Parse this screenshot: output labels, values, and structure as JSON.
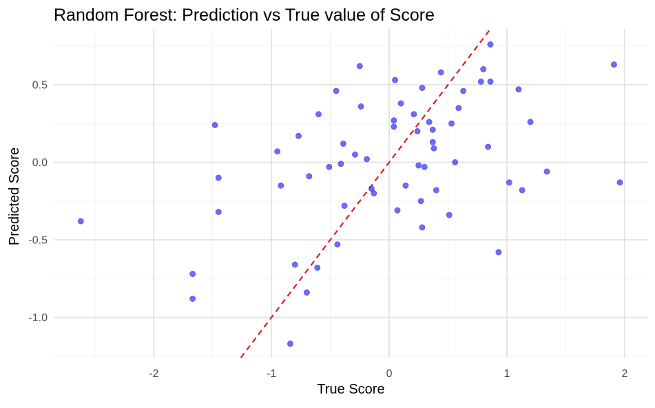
{
  "chart_data": {
    "type": "scatter",
    "title": "Random Forest: Prediction vs True value of Score",
    "xlabel": "True Score",
    "ylabel": "Predicted Score",
    "xlim": [
      -2.85,
      2.2
    ],
    "ylim": [
      -1.26,
      0.86
    ],
    "xticks": [
      -2,
      -1,
      0,
      1,
      2
    ],
    "xtick_labels": [
      "-2",
      "-1",
      "0",
      "1",
      "2"
    ],
    "yticks": [
      -1.0,
      -0.5,
      0.0,
      0.5
    ],
    "ytick_labels": [
      "-1.0",
      "-0.5",
      "0.0",
      "0.5"
    ],
    "grid": true,
    "point_color": "#3b3bf2",
    "reference_line": {
      "slope": 1,
      "intercept": 0,
      "style": "dashed",
      "color": "#e31a1c"
    },
    "x": [
      -2.62,
      -1.67,
      -1.67,
      -1.48,
      -1.45,
      -1.45,
      -0.95,
      -0.92,
      -0.84,
      -0.8,
      -0.77,
      -0.7,
      -0.68,
      -0.61,
      -0.6,
      -0.51,
      -0.45,
      -0.44,
      -0.41,
      -0.39,
      -0.38,
      -0.29,
      -0.25,
      -0.24,
      -0.19,
      -0.15,
      -0.13,
      0.04,
      0.04,
      0.05,
      0.07,
      0.1,
      0.14,
      0.21,
      0.24,
      0.25,
      0.27,
      0.28,
      0.28,
      0.3,
      0.34,
      0.37,
      0.37,
      0.38,
      0.4,
      0.44,
      0.51,
      0.53,
      0.56,
      0.59,
      0.63,
      0.78,
      0.8,
      0.84,
      0.86,
      0.86,
      0.93,
      1.02,
      1.1,
      1.13,
      1.2,
      1.34,
      1.91,
      1.96
    ],
    "y": [
      -0.38,
      -0.72,
      -0.88,
      0.24,
      -0.1,
      -0.32,
      0.07,
      -0.15,
      -1.17,
      -0.66,
      0.17,
      -0.84,
      -0.09,
      -0.68,
      0.31,
      -0.03,
      0.46,
      -0.53,
      -0.01,
      0.12,
      -0.28,
      0.05,
      0.62,
      0.36,
      0.02,
      -0.17,
      -0.2,
      0.23,
      0.27,
      0.53,
      -0.31,
      0.38,
      -0.15,
      0.31,
      0.2,
      -0.02,
      -0.25,
      -0.42,
      0.48,
      -0.03,
      0.26,
      0.21,
      0.13,
      0.09,
      -0.18,
      0.58,
      -0.34,
      0.25,
      0.0,
      0.35,
      0.46,
      0.52,
      0.6,
      0.1,
      0.52,
      0.76,
      -0.58,
      -0.13,
      0.47,
      -0.18,
      0.26,
      -0.06,
      0.63,
      -0.13
    ]
  }
}
